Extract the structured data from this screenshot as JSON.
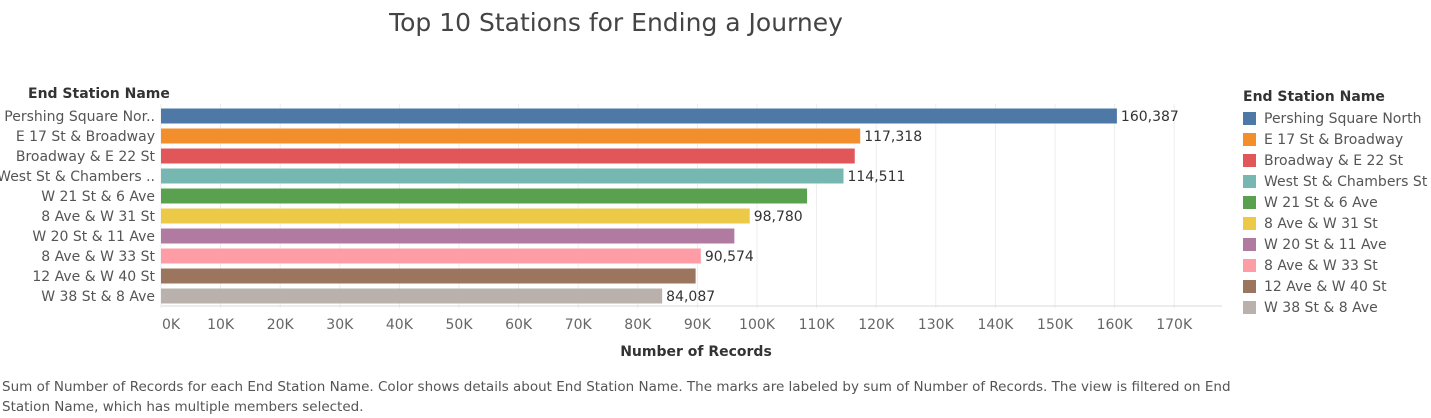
{
  "chart_data": {
    "type": "bar",
    "orientation": "horizontal",
    "title": "Top 10 Stations for Ending a Journey",
    "row_header": "End Station Name",
    "xlabel": "Number of Records",
    "xlim": [
      0,
      178000
    ],
    "x_ticks": [
      "0K",
      "10K",
      "20K",
      "30K",
      "40K",
      "50K",
      "60K",
      "70K",
      "80K",
      "90K",
      "100K",
      "110K",
      "120K",
      "130K",
      "140K",
      "150K",
      "160K",
      "170K"
    ],
    "grid": true,
    "legend_placement": "right",
    "categories": [
      "Pershing Square Nor..",
      "E 17 St & Broadway",
      "Broadway & E 22 St",
      "West St & Chambers ..",
      "W 21 St & 6 Ave",
      "8 Ave & W 31 St",
      "W 20 St & 11 Ave",
      "8 Ave & W 33 St",
      "12 Ave & W 40 St",
      "W 38 St & 8 Ave"
    ],
    "values": [
      160387,
      117318,
      116400,
      114511,
      108400,
      98780,
      96200,
      90574,
      89700,
      84087
    ],
    "value_labels": [
      "160,387",
      "117,318",
      "",
      "114,511",
      "",
      "98,780",
      "",
      "90,574",
      "",
      "84,087"
    ],
    "colors": [
      "#4e79a7",
      "#f28e2b",
      "#e15759",
      "#76b7b2",
      "#59a14f",
      "#edc948",
      "#b07aa1",
      "#ff9da7",
      "#9c755f",
      "#bab0ac"
    ],
    "legend": {
      "title": "End Station Name",
      "items": [
        "Pershing Square North",
        "E 17 St & Broadway",
        "Broadway & E 22 St",
        "West St & Chambers St",
        "W 21 St & 6 Ave",
        "8 Ave & W 31 St",
        "W 20 St & 11 Ave",
        "8 Ave & W 33 St",
        "12 Ave & W 40 St",
        "W 38 St & 8 Ave"
      ]
    }
  },
  "caption": "Sum of Number of Records for each End Station Name.  Color shows details about End Station Name.  The marks are labeled by sum of Number of Records. The view is filtered on End Station Name, which has multiple members selected."
}
